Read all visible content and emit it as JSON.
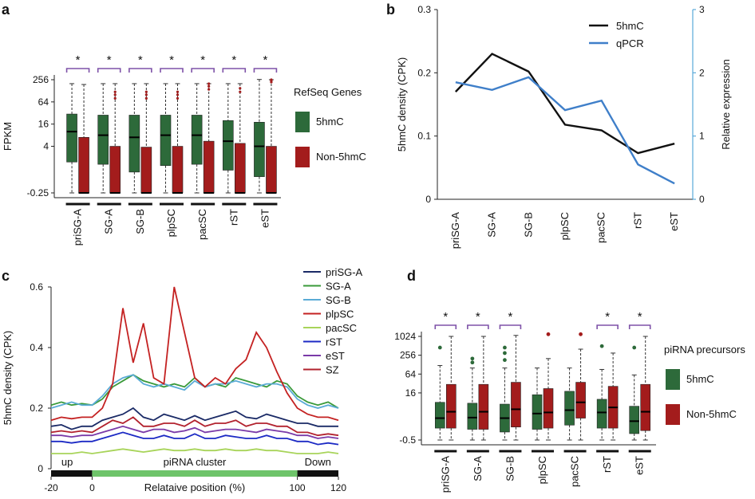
{
  "colors": {
    "green": "#2d6a3a",
    "red": "#a31c1c",
    "bracket": "#7e52a8",
    "line_5hmc": "#111111",
    "line_qpcr": "#3f7fc9",
    "axis_right": "#59a9d9",
    "cluster_bar": "#6ec46a",
    "flank_bar": "#111111"
  },
  "panels": {
    "a": {
      "letter": "a"
    },
    "b": {
      "letter": "b"
    },
    "c": {
      "letter": "c"
    },
    "d": {
      "letter": "d"
    }
  },
  "chart_data": [
    {
      "id": "a",
      "type": "box",
      "ylabel": "FPKM",
      "ytick_labels": [
        "256",
        "64",
        "16",
        "4",
        "-0.25"
      ],
      "ytick_values": [
        256,
        64,
        16,
        4,
        -0.25
      ],
      "categories": [
        "priSG-A",
        "SG-A",
        "SG-B",
        "plpSC",
        "pacSC",
        "rST",
        "eST"
      ],
      "significance": [
        "*",
        "*",
        "*",
        "*",
        "*",
        "*",
        "*"
      ],
      "legend_title": "RefSeq Genes",
      "series": [
        {
          "name": "5hmC",
          "boxes": [
            {
              "whislo": -0.25,
              "q1": 1.5,
              "median": 10,
              "q3": 30,
              "whishi": 200
            },
            {
              "whislo": -0.25,
              "q1": 1.3,
              "median": 8,
              "q3": 28,
              "whishi": 200
            },
            {
              "whislo": -0.25,
              "q1": 0.8,
              "median": 7,
              "q3": 28,
              "whishi": 200
            },
            {
              "whislo": -0.25,
              "q1": 1.2,
              "median": 8,
              "q3": 28,
              "whishi": 200
            },
            {
              "whislo": -0.25,
              "q1": 1.3,
              "median": 8,
              "q3": 28,
              "whishi": 200
            },
            {
              "whislo": -0.25,
              "q1": 0.9,
              "median": 5.5,
              "q3": 20,
              "whishi": 200
            },
            {
              "whislo": -0.25,
              "q1": 0.6,
              "median": 4,
              "q3": 18,
              "whishi": 260
            }
          ],
          "outliers": [
            [],
            [],
            [],
            [],
            [],
            [],
            []
          ]
        },
        {
          "name": "Non-5hmC",
          "boxes": [
            {
              "whislo": -0.25,
              "q1": -0.25,
              "median": 0.2,
              "q3": 7,
              "whishi": 190
            },
            {
              "whislo": -0.25,
              "q1": -0.25,
              "median": -0.25,
              "q3": 4,
              "whishi": 200
            },
            {
              "whislo": -0.25,
              "q1": -0.25,
              "median": -0.1,
              "q3": 3.8,
              "whishi": 200
            },
            {
              "whislo": -0.25,
              "q1": -0.25,
              "median": -0.1,
              "q3": 4,
              "whishi": 200
            },
            {
              "whislo": -0.25,
              "q1": -0.25,
              "median": 0.1,
              "q3": 5.5,
              "whishi": 200
            },
            {
              "whislo": -0.25,
              "q1": -0.25,
              "median": 0.1,
              "q3": 4.8,
              "whishi": 200
            },
            {
              "whislo": -0.25,
              "q1": -0.25,
              "median": 0.0,
              "q3": 4,
              "whishi": 256
            }
          ],
          "outliers": [
            [],
            [
              80,
              100,
              120
            ],
            [
              80,
              100,
              120
            ],
            [
              80,
              100,
              120
            ],
            [
              140,
              170,
              200
            ],
            [
              120,
              150
            ],
            [
              220,
              240,
              256
            ]
          ]
        }
      ]
    },
    {
      "id": "b",
      "type": "line",
      "categories": [
        "priSG-A",
        "SG-A",
        "SG-B",
        "plpSC",
        "pacSC",
        "rST",
        "eST"
      ],
      "ylabel": "5hmC density (CPK)",
      "ylabel_right": "Relative expression",
      "ylim": [
        0,
        0.3
      ],
      "ylim_right": [
        0,
        3
      ],
      "ytick_labels": [
        "0",
        "0.1",
        "0.2",
        "0.3"
      ],
      "ytick_values": [
        0,
        0.1,
        0.2,
        0.3
      ],
      "ytick_right_labels": [
        "0",
        "1",
        "2",
        "3"
      ],
      "ytick_right_values": [
        0,
        1,
        2,
        3
      ],
      "series": [
        {
          "name": "5hmC",
          "axis": "left",
          "values": [
            0.17,
            0.23,
            0.202,
            0.118,
            0.109,
            0.073,
            0.088
          ]
        },
        {
          "name": "qPCR",
          "axis": "right",
          "values": [
            1.85,
            1.73,
            1.93,
            1.41,
            1.56,
            0.55,
            0.25
          ]
        }
      ]
    },
    {
      "id": "c",
      "type": "line",
      "xlabel": "Relataive position (%)",
      "ylabel": "5hmC density (CPK)",
      "xlim": [
        -20,
        120
      ],
      "ylim": [
        0,
        0.6
      ],
      "xtick_labels": [
        "-20",
        "0",
        "100",
        "120"
      ],
      "xtick_values": [
        -20,
        0,
        100,
        120
      ],
      "ytick_labels": [
        "0",
        "0.2",
        "0.4",
        "0.6"
      ],
      "ytick_values": [
        0,
        0.2,
        0.4,
        0.6
      ],
      "region_labels": {
        "up": "up",
        "cluster": "piRNA cluster",
        "down": "Down"
      },
      "x": [
        -20,
        -15,
        -10,
        -5,
        0,
        5,
        10,
        15,
        20,
        25,
        30,
        35,
        40,
        45,
        50,
        55,
        60,
        65,
        70,
        75,
        80,
        85,
        90,
        95,
        100,
        105,
        110,
        115,
        120
      ],
      "series": [
        {
          "name": "priSG-A",
          "color": "#1a2a66",
          "values": [
            0.14,
            0.145,
            0.13,
            0.14,
            0.14,
            0.16,
            0.17,
            0.18,
            0.2,
            0.17,
            0.16,
            0.18,
            0.17,
            0.16,
            0.175,
            0.16,
            0.17,
            0.18,
            0.19,
            0.17,
            0.165,
            0.18,
            0.17,
            0.16,
            0.15,
            0.15,
            0.14,
            0.14,
            0.14
          ]
        },
        {
          "name": "SG-A",
          "color": "#3a9a3a",
          "values": [
            0.21,
            0.22,
            0.21,
            0.215,
            0.21,
            0.23,
            0.27,
            0.29,
            0.31,
            0.29,
            0.28,
            0.27,
            0.28,
            0.27,
            0.3,
            0.27,
            0.28,
            0.27,
            0.3,
            0.29,
            0.28,
            0.27,
            0.29,
            0.28,
            0.24,
            0.22,
            0.21,
            0.22,
            0.2
          ]
        },
        {
          "name": "SG-B",
          "color": "#5aabd6",
          "values": [
            0.2,
            0.21,
            0.22,
            0.21,
            0.21,
            0.24,
            0.28,
            0.3,
            0.31,
            0.28,
            0.27,
            0.28,
            0.27,
            0.26,
            0.29,
            0.27,
            0.28,
            0.28,
            0.29,
            0.28,
            0.27,
            0.28,
            0.28,
            0.27,
            0.23,
            0.21,
            0.2,
            0.21,
            0.2
          ]
        },
        {
          "name": "plpSC",
          "color": "#c42222",
          "values": [
            0.16,
            0.17,
            0.165,
            0.17,
            0.17,
            0.2,
            0.28,
            0.53,
            0.35,
            0.48,
            0.3,
            0.28,
            0.6,
            0.45,
            0.3,
            0.27,
            0.3,
            0.28,
            0.33,
            0.36,
            0.45,
            0.4,
            0.32,
            0.25,
            0.2,
            0.18,
            0.17,
            0.17,
            0.16
          ]
        },
        {
          "name": "pacSC",
          "color": "#a8d45a",
          "values": [
            0.05,
            0.05,
            0.05,
            0.055,
            0.05,
            0.055,
            0.06,
            0.065,
            0.06,
            0.055,
            0.06,
            0.065,
            0.06,
            0.06,
            0.065,
            0.06,
            0.06,
            0.065,
            0.06,
            0.06,
            0.065,
            0.06,
            0.06,
            0.055,
            0.05,
            0.05,
            0.05,
            0.055,
            0.05
          ]
        },
        {
          "name": "rST",
          "color": "#1c2ac4",
          "values": [
            0.09,
            0.09,
            0.085,
            0.09,
            0.09,
            0.1,
            0.11,
            0.12,
            0.11,
            0.1,
            0.1,
            0.11,
            0.1,
            0.1,
            0.115,
            0.1,
            0.1,
            0.11,
            0.105,
            0.1,
            0.1,
            0.11,
            0.1,
            0.1,
            0.09,
            0.09,
            0.08,
            0.085,
            0.08
          ]
        },
        {
          "name": "eST",
          "color": "#7a3aa8",
          "values": [
            0.11,
            0.11,
            0.105,
            0.11,
            0.11,
            0.12,
            0.13,
            0.14,
            0.13,
            0.12,
            0.13,
            0.13,
            0.12,
            0.125,
            0.135,
            0.12,
            0.125,
            0.13,
            0.13,
            0.125,
            0.12,
            0.13,
            0.125,
            0.12,
            0.11,
            0.11,
            0.1,
            0.105,
            0.1
          ]
        },
        {
          "name": "SZ",
          "color": "#b2222e",
          "values": [
            0.12,
            0.125,
            0.12,
            0.125,
            0.12,
            0.14,
            0.16,
            0.15,
            0.17,
            0.14,
            0.14,
            0.15,
            0.15,
            0.14,
            0.16,
            0.14,
            0.15,
            0.15,
            0.16,
            0.14,
            0.15,
            0.15,
            0.14,
            0.14,
            0.12,
            0.12,
            0.11,
            0.115,
            0.11
          ]
        }
      ]
    },
    {
      "id": "d",
      "type": "box",
      "ytick_labels": [
        "1024",
        "256",
        "64",
        "16",
        "-0.5"
      ],
      "ytick_values": [
        1024,
        256,
        64,
        16,
        -0.5
      ],
      "categories": [
        "priSG-A",
        "SG-A",
        "SG-B",
        "plpSC",
        "pacSC",
        "rST",
        "eST"
      ],
      "significance": [
        "*",
        "*",
        "*",
        "",
        "",
        "*",
        "*"
      ],
      "legend_title": "piRNA precursors",
      "series": [
        {
          "name": "5hmC",
          "boxes": [
            {
              "whislo": -0.5,
              "q1": 1.2,
              "median": 2.5,
              "q3": 8,
              "whishi": 120
            },
            {
              "whislo": -0.5,
              "q1": 1.1,
              "median": 2.6,
              "q3": 7.5,
              "whishi": 100
            },
            {
              "whislo": -0.5,
              "q1": 0.9,
              "median": 2.5,
              "q3": 7,
              "whishi": 100
            },
            {
              "whislo": -0.5,
              "q1": 1.1,
              "median": 3.5,
              "q3": 14,
              "whishi": 100
            },
            {
              "whislo": -0.5,
              "q1": 1.5,
              "median": 4.5,
              "q3": 18,
              "whishi": 100
            },
            {
              "whislo": -0.5,
              "q1": 1.2,
              "median": 3.8,
              "q3": 10,
              "whishi": 90
            },
            {
              "whislo": -0.5,
              "q1": 0.8,
              "median": 2,
              "q3": 6,
              "whishi": 60
            }
          ],
          "outliers": [
            [
              450
            ],
            [
              200,
              150
            ],
            [
              450,
              300,
              180
            ],
            [],
            [],
            [
              500
            ],
            [
              450
            ]
          ]
        },
        {
          "name": "Non-5hmC",
          "boxes": [
            {
              "whislo": -0.5,
              "q1": 1.2,
              "median": 4,
              "q3": 30,
              "whishi": 1024
            },
            {
              "whislo": -0.5,
              "q1": 1.1,
              "median": 4,
              "q3": 30,
              "whishi": 1024
            },
            {
              "whislo": -0.5,
              "q1": 1.3,
              "median": 4.8,
              "q3": 35,
              "whishi": 1100
            },
            {
              "whislo": -0.5,
              "q1": 1.2,
              "median": 3.8,
              "q3": 22,
              "whishi": 200
            },
            {
              "whislo": -0.5,
              "q1": 2.5,
              "median": 8,
              "q3": 35,
              "whishi": 400
            },
            {
              "whislo": -0.5,
              "q1": 1.2,
              "median": 5.5,
              "q3": 26,
              "whishi": 300
            },
            {
              "whislo": -0.5,
              "q1": 1.0,
              "median": 4,
              "q3": 30,
              "whishi": 1024
            }
          ],
          "outliers": [
            [],
            [],
            [],
            [
              1200
            ],
            [
              1200
            ],
            [],
            []
          ]
        }
      ]
    }
  ]
}
